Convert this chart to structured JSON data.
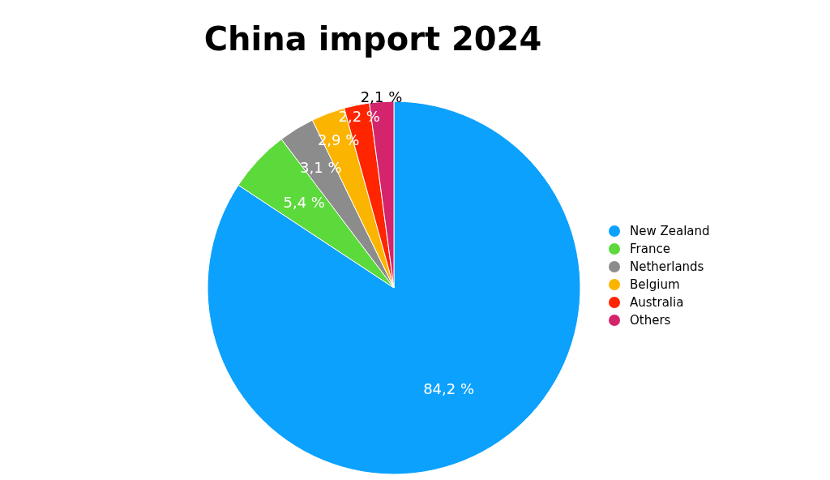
{
  "chart_data": {
    "type": "pie",
    "title": "China import 2024",
    "categories": [
      "New Zealand",
      "France",
      "Netherlands",
      "Belgium",
      "Australia",
      "Others"
    ],
    "values": [
      84.2,
      5.4,
      3.1,
      2.9,
      2.2,
      2.1
    ],
    "colors": [
      "#0ba1fd",
      "#5cd93b",
      "#8c8c8c",
      "#fbb400",
      "#fe2500",
      "#d4246c"
    ],
    "value_labels": [
      "84,2 %",
      "5,4 %",
      "3,1 %",
      "2,9 %",
      "2,2 %",
      "2,1 %"
    ],
    "legend": "right"
  }
}
